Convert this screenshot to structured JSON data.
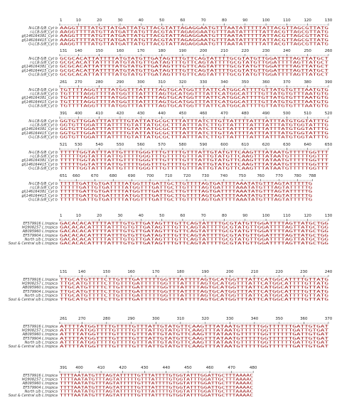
{
  "top": {
    "labels": [
      "N-LCB-S/8_Cyt b",
      "r-LCB-S/8_Cyt b",
      "gi|146164381_Cyt b",
      "gi|146164415_Cyt b",
      "O-LCB-S/8_Cyt b"
    ],
    "blocks": [
      {
        "ruler": [
          1,
          10,
          20,
          30,
          40,
          50,
          60,
          70,
          80,
          90,
          100,
          110,
          120,
          130
        ],
        "rows": [
          "AAGGTTTTATGTTATGATTATGTTACGTATTAGAGGAATGTTTAATATTTTTATTACGTTAGCGTTATG",
          "AAGGTTTTATGTTATGATTATGTTACGTATTAGAGGAATGTTTAATATTTTTATTACGTTAGCGTTATG",
          "AAGGTTTTATGTTATGATTATGTTACGTATTAGAGGAATGTTTAATATTTTTATTACGTTAGCGTTATG",
          "AAGGTTTTATGTTATGATTATGTTACGTATTAGAGGAATGTTTAATATTTTTATTACGTTAGCGTTATG",
          "AAGGTTTTATGTTATGATTATGTTACGTATTAGAGGAATGTTTAATATTTTTATTACGTTAGCGTTATG"
        ]
      },
      {
        "ruler": [
          131,
          140,
          150,
          160,
          170,
          180,
          190,
          200,
          210,
          220,
          230,
          240,
          250,
          260
        ],
        "rows": [
          "GCGCACATTATTTTATGTATGTTGATAGTTTGTTCAGTATTTTGCGTATGTTGGATTTTAGTTATGCT",
          "GCGCACATTATTTTATGTATGTTGATAGTTTGTTCAGTATTTTGCGTATGTTGGATTTTAGTTATGCT",
          "GCGCACATTATTTTATGTATGTTGATAGTTTGTTCAGTATTTTGCGTATGTTGGATTTTAGTTATGCT",
          "GCGCACATTATTTTATGTATGTTGATAGTTTGTTCAGTATTTTGCGTATGTTGGATTTTAGTTATGCT",
          "GCGCACATTATTTTATGTATGTTGATAGTTTGTTCAGTATTTTGCGTATGTTGGATTTTAGTTATGCT"
        ]
      },
      {
        "ruler": [
          261,
          270,
          280,
          290,
          300,
          310,
          320,
          330,
          340,
          350,
          360,
          370,
          380,
          390
        ],
        "rows": [
          "TGTTTTAGGTTTTATGGTTTATTTTAGTGCATGGTTTATTCATGGCATTTTGTTATGTGTTTAATGTG",
          "TGTTTTAGGTTTTATGGTTTATTTTAGTGCATGGTTTATTCATGGCATTTTGTTATGTGTTTAATGTG",
          "TGTTTTAGGTTTTATGGTTTATTTTAGTGCATGGTTTATTCATGGCATTTTGTTATGTGTTTAATGTG",
          "TGTTTTAGGTTTTATGGTTTATTTTAGTGCATGGTTTATTCATGGCATTTTGTTATGTGTTTAATGTG",
          "TGTTTTAGGTTTTATGGTTTATTTTAGTGCATGGTTTATTCATGGCATTTTGTTATGTGTTTAATGTG"
        ]
      },
      {
        "ruler": [
          391,
          400,
          410,
          420,
          430,
          440,
          450,
          460,
          470,
          480,
          490,
          500,
          510,
          520
        ],
        "rows": [
          "GGTGTTGGATTTATTTTGTATTATGCGCTTTATTTATCTTGTTATTTTATTTATTTATGTGGTATTTG",
          "GGTGTTGGATTTATTTTGTATTATGCGCTTTATTTATCTTGTTATTTTATTTATTTATGTGGTATTTG",
          "GGTGTTGGATTTATTTTGTATTATGCGCTTTATTTATCTTGTTATTTTATTTATTTATGTGGTATTTG",
          "GGTGTTGGATTTATTTTGTATTATGCGCTTTATTTATCTTGTTATTTTATTTATTTATGTGGTATTTG",
          "GGTGTTGGATTTATTTTGTATTATGCGCTTTATTTATCTTGTTATTTTATTTATTTATGTGGTATTTG"
        ]
      },
      {
        "ruler": [
          521,
          530,
          540,
          550,
          560,
          570,
          580,
          590,
          600,
          610,
          620,
          630,
          640,
          650
        ],
        "rows": [
          "TTTTTGGTATTTATTGTTTTGGGTTTGTTTTGTTTATTGTATGTTCAAGTTTATAATGTTTTTGGTTT",
          "TTTTTGGTATTTATTGTTTTGGGTTTGTTTTGTTTATTGTATGTTCAAGTTTATAATGTTTTTGGTTT",
          "TTTTTGGTATTTATTGTTTTGGGTTTGTTTTGTTTATTGTATGTTCAAGTTTATAATGTTTTTGGTTT",
          "TTTTTGGTATTTATTGTTTTGGGTTTGTTTTGTTTATTGTATGTTCAAGTTTATAATGTTTTTGGTTT",
          "TTTTTGGTATTTATTGTTTTGGGTTTGTTTTGTTTATTGTATGTTCAAGTTTATAATGTTTTTGGTTT"
        ]
      },
      {
        "ruler": [
          651,
          660,
          670,
          680,
          690,
          700,
          710,
          720,
          730,
          740,
          750,
          760,
          770,
          780,
          788
        ],
        "rows": [
          "TTTTTGATTGTGATTTTATGGTTTGATTGCTTGTTTTAGTGATTTTAAATATGTTTAGTATTTTTG",
          "TTTTTGATTGTGATTTTATGGTTTGATTGCTTGTTTTAGTGATTTTAAATATGTTTAGTATTTTTG",
          "TTTTTGATTGTGATTTTATGGTTTGATTGCTTGTTTTAGTGATTTTAAATATGTTTAGTATTTTTG",
          "TTTTTGATTGTGATTTTATGGTTTGATTGCTTGTTTTAGTGATTTTAAATATGTTTAGTATTTTTG",
          "TTTTTGATTGTGATTTTATGGTTTGATTGCTTGTTTTAGTGATTTTAAATATGTTTAGTATTTTTG"
        ]
      }
    ]
  },
  "bottom": {
    "labels": [
      "EF579916 L.tropica",
      "HQ908257 L.tropica",
      "AB095960 L.tropica",
      "EF579904 L.tropica",
      "North s/b L.tropica",
      "Sout & Central s/b L.tropica"
    ],
    "blocks": [
      {
        "ruler": [
          1,
          10,
          20,
          30,
          40,
          50,
          60,
          70,
          80,
          90,
          100,
          110,
          120,
          130
        ],
        "rows": [
          "GACACACATTTTATTTGTGTTGATAGTTTGTTCAGTATTTTGCGTATGTTGGATTTTAGTTATGCTGG",
          "GACACACATTTTATTTGTGTTGATAGTTTGTTCAGTATTTTGCGTATGTTGGATTTTAGTTATGCTGG",
          "GACACACATTTTATTTGTGTTGATAGTTTGTTCAGTATTTTGCGTATGTTGGATTTTAGTTATGCTGG",
          "GACACACATTTTATTTGTGTTGATAGTTTGTTCAGTATTTTGCGTATGTTGGATTTTAGTTATGCTGG",
          "GACACACATTTTATTTGTGTTGATAGTTTGTTCAGTATTTTGCGTATGTTGGATTTTAGTTATGCTGG",
          "GACACACATTTTATTTGTGTTGATAGTTTGTTCAGTATTTTGCGTATGTTGGATTTTAGTTATGCTGG"
        ]
      },
      {
        "ruler": [
          131,
          140,
          150,
          160,
          170,
          180,
          190,
          200,
          210,
          220,
          230,
          240
        ],
        "rows": [
          "TTGCATGTTTTCTTGTTTGATTTTTGGTTTATTTTAGTGCATGGTTTATTCATGGCATTTTGTTATG",
          "TTGCATGTTTTCTTGTTTGATTTTTGGTTTATTTTAGTGCATGGTTTATTCATGGCATTTTGTTATG",
          "TTGCATGTTTTCTTGTTTGATTTTTGGTTTATTTTAGTGCATGGTTTATTCATGGCATTTTGTTATG",
          "TTGCATGTTTTCTTGTTTGATTTTTGGTTTATTTTAGTGCATGGTTTATTCATGGCATTTTGTTATG",
          "TTGCATGTTTTCTTGTTTGATTTTTGGTTTATTTTAGTGCATGGTTTATTCATGGCATTTTGTTATG",
          "TTGCATGTTTTCTTGTTTGATTTTTGGTTTATTTTAGTGCATGGTTTATTCATGGCATTTTGTTATG"
        ]
      },
      {
        "ruler": [
          261,
          270,
          280,
          290,
          300,
          310,
          320,
          330,
          340,
          350,
          360,
          370
        ],
        "rows": [
          "ATTTTATGGTTTTGTTTTGTTTATTGTATGTTCAAGTTTATAATGTTTTTGGTTTTTTGATTGTGAT",
          "ATTTTATGGTTTTGTTTTGTTTATTGTATGTTCAAGTTTATAATGTTTTTGGTTTTTTGATTGTGAT",
          "ATTTTATGGTTTTGTTTTGTTTATTGTATGTTCAAGTTTATAATGTTTTTGGTTTTTTGATTGTGAT",
          "ATTTTATGGTTTTGTTTTGTTTATTGTATGTTCAAGTTTATAATGTTTTTGGTTTTTTGATTGTGAT",
          "ATTTTATGGTTTTGTTTTGTTTATTGTATGTTCAAGTTTATAATGTTTTTGGTTTTTTGATTGTGAT",
          "ATTTTATGGTTTTGTTTTGTTTATTGTATGTTCAAGTTTATAATGTTTTTGGTTTTTTGATTGTGAT"
        ]
      },
      {
        "ruler": [
          391,
          400,
          410,
          420,
          430,
          440,
          450,
          460,
          470,
          480
        ],
        "rows": [
          "TTTTAATATGTTTAGTATTTTTGTTTATTTTGTGGTATTTGGATTGCTTTAAAAC",
          "TTTTAATATGTTTAGTATTTTTGTTTATTTTGTGGTATTTGGATTGCTTTAAAAC",
          "TTTTAATATGTTTAGTATTTTTGTTTATTTTGTGGTATTTGGATTGCTTTAAAAC",
          "TTTTAATATGTTTAGTATTTTTGTTTATTTTGTGGTATTTGGATTGCTTTAAAAC",
          "TTTTAATATGTTTAGTATTTTTGTTTATTTTGTGGTATTTGGATTGCTTTAAAAC",
          "TTTTAATATGTTTAGTATTTTTGTTTATTTTGTGGTATTTGGATTGCTTTAAAAC"
        ]
      }
    ]
  }
}
